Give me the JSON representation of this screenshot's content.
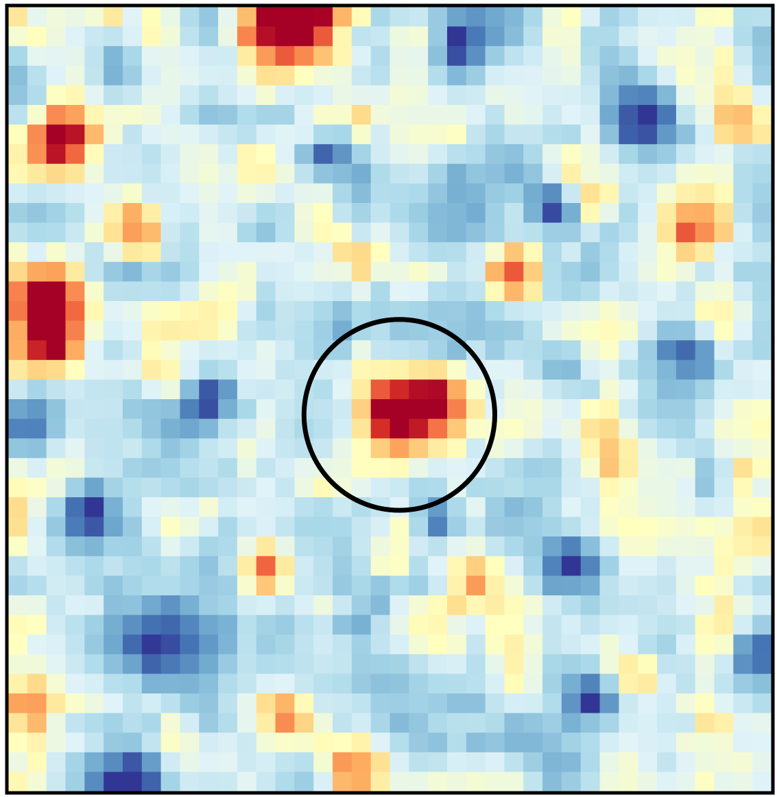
{
  "chart_data": {
    "type": "heatmap",
    "title": "",
    "xlabel": "",
    "ylabel": "",
    "colorscale": "RdYlBu_r",
    "colors": {
      "low": "#3f64b4",
      "mid": "#fefec0",
      "high": "#a50026",
      "frame": "#000000",
      "circle": "#000000"
    },
    "grid_cols": 40,
    "grid_rows": 40,
    "value_range": [
      -1,
      1
    ],
    "background_level": -0.15,
    "noise_amplitude": 0.42,
    "hotspots": [
      {
        "col": 15.5,
        "row": 0.3,
        "radius": 2.6,
        "peak": 1.35
      },
      {
        "col": 13.5,
        "row": 0.8,
        "radius": 1.7,
        "peak": 0.9
      },
      {
        "col": 2.8,
        "row": 7.0,
        "radius": 1.7,
        "peak": 1.05
      },
      {
        "col": 1.8,
        "row": 15.3,
        "radius": 2.0,
        "peak": 1.2
      },
      {
        "col": 2.3,
        "row": 17.5,
        "radius": 1.6,
        "peak": 0.7
      },
      {
        "col": 7.1,
        "row": 11.4,
        "radius": 1.4,
        "peak": 0.95
      },
      {
        "col": 20.5,
        "row": 21.0,
        "radius": 2.1,
        "peak": 1.6
      },
      {
        "col": 22.5,
        "row": 19.8,
        "radius": 1.3,
        "peak": 0.9
      },
      {
        "col": 26.8,
        "row": 13.8,
        "radius": 1.4,
        "peak": 0.8
      },
      {
        "col": 18.5,
        "row": 12.8,
        "radius": 1.5,
        "peak": 0.6
      },
      {
        "col": 31.2,
        "row": 21.8,
        "radius": 1.6,
        "peak": 0.7
      },
      {
        "col": 35.8,
        "row": 11.2,
        "radius": 1.8,
        "peak": 0.7
      },
      {
        "col": 30.8,
        "row": 9.8,
        "radius": 1.1,
        "peak": 0.5
      },
      {
        "col": 38.5,
        "row": 5.5,
        "radius": 1.2,
        "peak": 0.45
      },
      {
        "col": 13.5,
        "row": 28.5,
        "radius": 1.1,
        "peak": 0.6
      },
      {
        "col": 20.2,
        "row": 28.5,
        "radius": 1.0,
        "peak": 0.55
      },
      {
        "col": 18.0,
        "row": 38.8,
        "radius": 1.6,
        "peak": 0.85
      },
      {
        "col": 14.5,
        "row": 36.0,
        "radius": 1.3,
        "peak": 0.6
      },
      {
        "col": 1.0,
        "row": 36.0,
        "radius": 1.5,
        "peak": 0.6
      },
      {
        "col": 33.0,
        "row": 34.0,
        "radius": 1.2,
        "peak": 0.6
      },
      {
        "col": 24.5,
        "row": 29.5,
        "radius": 1.0,
        "peak": 0.45
      },
      {
        "col": 10.5,
        "row": 25.5,
        "radius": 1.0,
        "peak": 0.45
      },
      {
        "col": 38.5,
        "row": 24.0,
        "radius": 1.1,
        "peak": 0.5
      }
    ],
    "coldspots": [
      {
        "col": 33.5,
        "row": 5.8,
        "radius": 2.0,
        "peak": -0.9
      },
      {
        "col": 28.5,
        "row": 10.2,
        "radius": 1.2,
        "peak": -0.85
      },
      {
        "col": 23.8,
        "row": 1.7,
        "radius": 1.3,
        "peak": -0.8
      },
      {
        "col": 8.3,
        "row": 33.0,
        "radius": 2.6,
        "peak": -0.95
      },
      {
        "col": 6.5,
        "row": 40.0,
        "radius": 2.0,
        "peak": -1.0
      },
      {
        "col": 10.5,
        "row": 20.5,
        "radius": 1.6,
        "peak": -0.85
      },
      {
        "col": 1.5,
        "row": 21.0,
        "radius": 1.6,
        "peak": -0.6
      },
      {
        "col": 22.4,
        "row": 26.2,
        "radius": 1.2,
        "peak": -0.9
      },
      {
        "col": 29.5,
        "row": 28.5,
        "radius": 1.8,
        "peak": -0.8
      },
      {
        "col": 35.5,
        "row": 17.5,
        "radius": 1.5,
        "peak": -0.75
      },
      {
        "col": 16.5,
        "row": 7.5,
        "radius": 1.1,
        "peak": -0.7
      },
      {
        "col": 4.2,
        "row": 25.5,
        "radius": 1.5,
        "peak": -0.7
      },
      {
        "col": 31.0,
        "row": 35.5,
        "radius": 1.2,
        "peak": -0.8
      },
      {
        "col": 39.0,
        "row": 33.0,
        "radius": 1.3,
        "peak": -0.6
      }
    ],
    "annotation_circle": {
      "col": 20.5,
      "row": 20.8,
      "radius_cells": 5.0
    },
    "grid": false,
    "legend": "none"
  }
}
